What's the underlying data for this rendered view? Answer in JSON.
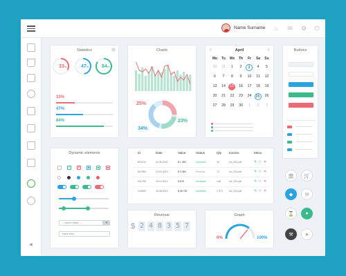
{
  "header": {
    "user_name": "Name Surname"
  },
  "colors": {
    "primary": "#2aa3e0",
    "success": "#3cba8c",
    "danger": "#ec5b66",
    "warning": "#f5a623",
    "background": "#1fa2c1"
  },
  "statistics": {
    "title": "Statistics",
    "rings": [
      {
        "value": 33,
        "label": "33",
        "unit": "%",
        "color": "#ec6a73"
      },
      {
        "value": 47,
        "label": "47",
        "unit": "%",
        "color": "#2aa3e0"
      },
      {
        "value": 84,
        "label": "84",
        "unit": "%",
        "color": "#3cba8c"
      }
    ],
    "bars": [
      {
        "label": "33%",
        "value": 33,
        "color": "#ec6a73"
      },
      {
        "label": "47%",
        "value": 47,
        "color": "#2aa3e0"
      },
      {
        "label": "84%",
        "value": 84,
        "color": "#3cba8c"
      }
    ]
  },
  "charts": {
    "title": "Charts",
    "pie_labels": [
      "25%",
      "23%",
      "34%"
    ]
  },
  "calendar": {
    "month": "April",
    "weekdays": [
      "Mo",
      "Tu",
      "We",
      "Th",
      "Fr",
      "Sa",
      "Su"
    ],
    "days": [
      "30",
      "31",
      "1",
      "2",
      "3",
      "4",
      "5",
      "6",
      "7",
      "8",
      "9",
      "10",
      "11",
      "12",
      "13",
      "14",
      "15",
      "16",
      "17",
      "18",
      "19",
      "20",
      "21",
      "22",
      "23",
      "24",
      "25",
      "26",
      "27",
      "28",
      "29",
      "30",
      "1",
      "2",
      "3"
    ],
    "selected": "15",
    "outlined": [
      "3",
      "25"
    ]
  },
  "buttons_panel": {
    "title": "Buttons"
  },
  "dynamic": {
    "title": "Dynamic elements",
    "select_value": "-- select value --",
    "input_placeholder": "Input area"
  },
  "table": {
    "headers": [
      "Id",
      "Date",
      "Value",
      "Status",
      "Qty",
      "Invoice",
      "Menu"
    ],
    "rows": [
      {
        "id": "804133",
        "date": "11.05.2022",
        "value": "$ 1 083",
        "status": "Accepted",
        "qty": "16",
        "invoice": "inv_031.pdf"
      },
      {
        "id": "847956",
        "date": "13.04.2019",
        "value": "$ 3 084",
        "status": "Pending",
        "qty": "74",
        "invoice": "inv_031.pdf"
      },
      {
        "id": "941785",
        "date": "15.11.2021",
        "value": "$ 678",
        "status": "Accepted",
        "qty": "148",
        "invoice": "inv_031.pdf"
      },
      {
        "id": "223699",
        "date": "16.08.2019",
        "value": "$ 98 761",
        "status": "Accepted",
        "qty": "1 973",
        "invoice": "inv_031.pdf"
      }
    ]
  },
  "revenue": {
    "title": "Revenue",
    "currency": "$",
    "digits": [
      "2",
      "4",
      "8",
      "3",
      "5",
      "7"
    ]
  },
  "graph": {
    "title": "Graph",
    "min_label": "0%",
    "max_label": "100%",
    "value": 72
  },
  "icons": [
    "menu-icon",
    "bell-icon",
    "mail-icon",
    "settings-icon",
    "power-icon",
    "home-icon",
    "cart-icon",
    "bank-icon",
    "diamond-icon",
    "chat-icon",
    "hourglass-icon",
    "wrench-icon",
    "megaphone-icon"
  ]
}
